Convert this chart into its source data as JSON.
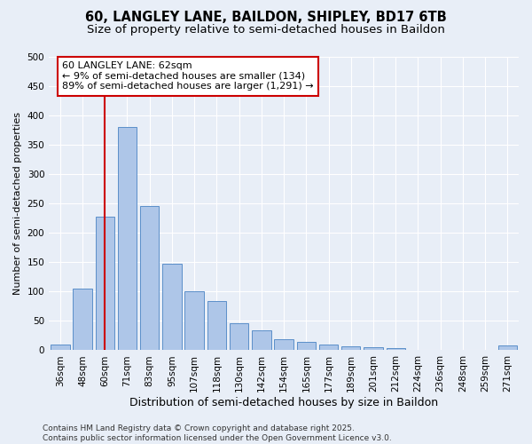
{
  "title1": "60, LANGLEY LANE, BAILDON, SHIPLEY, BD17 6TB",
  "title2": "Size of property relative to semi-detached houses in Baildon",
  "xlabel": "Distribution of semi-detached houses by size in Baildon",
  "ylabel": "Number of semi-detached properties",
  "categories": [
    "36sqm",
    "48sqm",
    "60sqm",
    "71sqm",
    "83sqm",
    "95sqm",
    "107sqm",
    "118sqm",
    "130sqm",
    "142sqm",
    "154sqm",
    "165sqm",
    "177sqm",
    "189sqm",
    "201sqm",
    "212sqm",
    "224sqm",
    "236sqm",
    "248sqm",
    "259sqm",
    "271sqm"
  ],
  "values": [
    10,
    105,
    228,
    380,
    246,
    147,
    100,
    84,
    46,
    34,
    19,
    14,
    10,
    7,
    5,
    4,
    1,
    0,
    0,
    0,
    8
  ],
  "bar_color": "#aec6e8",
  "bar_edge_color": "#5b8fc9",
  "vline_x": 2,
  "vline_color": "#cc0000",
  "annotation_line1": "60 LANGLEY LANE: 62sqm",
  "annotation_line2": "← 9% of semi-detached houses are smaller (134)",
  "annotation_line3": "89% of semi-detached houses are larger (1,291) →",
  "annotation_box_color": "#ffffff",
  "annotation_box_edge_color": "#cc0000",
  "bg_color": "#e8eef7",
  "plot_bg_color": "#e8eef7",
  "footer_text": "Contains HM Land Registry data © Crown copyright and database right 2025.\nContains public sector information licensed under the Open Government Licence v3.0.",
  "ylim": [
    0,
    500
  ],
  "yticks": [
    0,
    50,
    100,
    150,
    200,
    250,
    300,
    350,
    400,
    450,
    500
  ],
  "title1_fontsize": 10.5,
  "title2_fontsize": 9.5,
  "xlabel_fontsize": 9,
  "ylabel_fontsize": 8,
  "tick_fontsize": 7.5,
  "annotation_fontsize": 8,
  "footer_fontsize": 6.5
}
